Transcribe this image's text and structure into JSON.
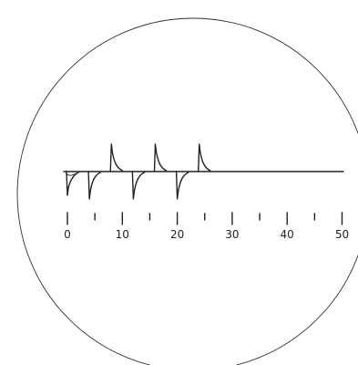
{
  "scale": {
    "major_ticks": [
      0,
      10,
      20,
      30,
      40,
      50
    ],
    "major_labels": [
      "0",
      "10",
      "20",
      "30",
      "40",
      "50"
    ],
    "minor_ticks": [
      5,
      15,
      25,
      35,
      45
    ]
  },
  "trace": {
    "upward_pulses_at": [
      8,
      16,
      24
    ],
    "downward_pulses_at": [
      0,
      4,
      12,
      20
    ]
  },
  "colors": {
    "ink": "#222222",
    "background": "#ffffff"
  }
}
